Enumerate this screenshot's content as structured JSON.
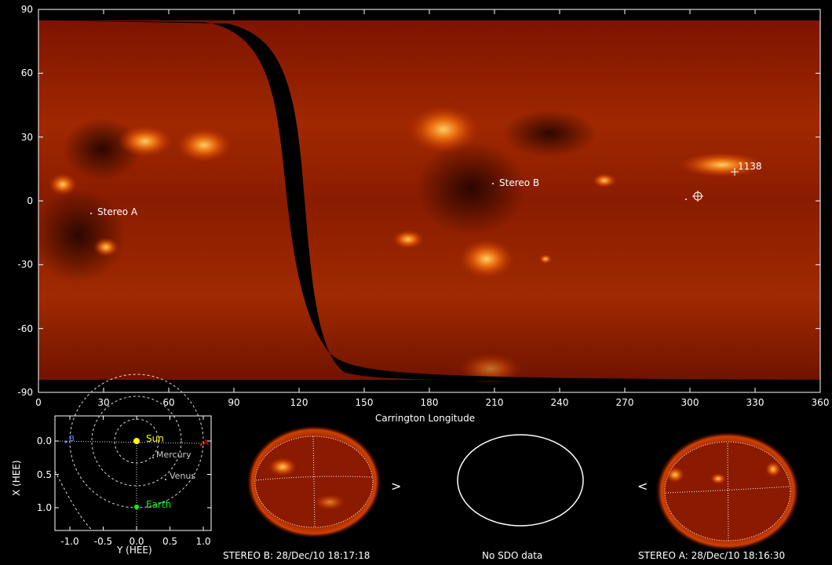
{
  "map": {
    "xlabel": "Carrington Longitude",
    "x_ticks": [
      "0",
      "30",
      "60",
      "90",
      "120",
      "150",
      "180",
      "210",
      "240",
      "270",
      "300",
      "330",
      "360"
    ],
    "y_ticks": [
      "90",
      "60",
      "30",
      "0",
      "-30",
      "-60",
      "-90"
    ],
    "labels": {
      "stereo_a": "Stereo A",
      "stereo_b": "Stereo B",
      "region": "1138"
    },
    "colors": {
      "background": "#8a1a00",
      "bright": "#ffb040",
      "gap": "#000000"
    }
  },
  "orbit_plot": {
    "xlabel": "Y (HEE)",
    "ylabel": "X (HEE)",
    "x_ticks": [
      "-1.0",
      "-0.5",
      "0.0",
      "0.5",
      "1.0"
    ],
    "y_ticks": [
      "0.0",
      "0.5",
      "1.0"
    ],
    "bodies": {
      "sun": "Sun",
      "mercury": "Mercury",
      "venus": "Venus",
      "earth": "Earth",
      "stereo_a": "A",
      "stereo_b": "B"
    },
    "colors": {
      "sun": "#ffff00",
      "earth": "#00ff00",
      "stereo_a": "#ff0000",
      "stereo_b": "#6f8fff"
    }
  },
  "disks": {
    "stereo_b": "STEREO B: 28/Dec/10 18:17:18",
    "sdo": "No SDO data",
    "stereo_a": "STEREO A: 28/Dec/10 18:16:30",
    "arrow_right": ">",
    "arrow_left": "<"
  }
}
